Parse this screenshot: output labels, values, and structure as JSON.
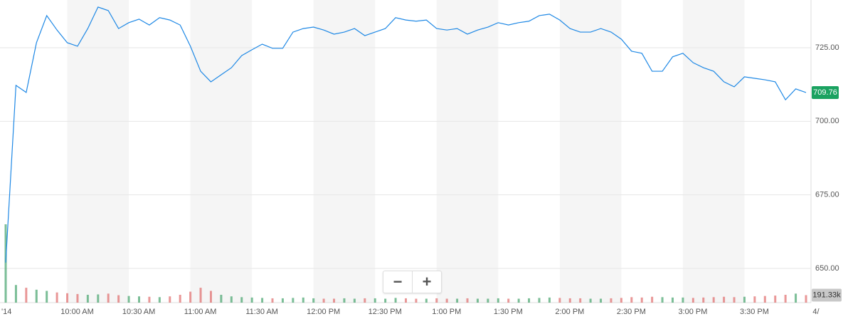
{
  "chart_data": {
    "type": "line",
    "x": [
      "9:30 AM",
      "9:35 AM",
      "9:40 AM",
      "9:45 AM",
      "9:50 AM",
      "9:55 AM",
      "10:00 AM",
      "10:05 AM",
      "10:10 AM",
      "10:15 AM",
      "10:20 AM",
      "10:25 AM",
      "10:30 AM",
      "10:35 AM",
      "10:40 AM",
      "10:45 AM",
      "10:50 AM",
      "10:55 AM",
      "11:00 AM",
      "11:05 AM",
      "11:10 AM",
      "11:15 AM",
      "11:20 AM",
      "11:25 AM",
      "11:30 AM",
      "11:35 AM",
      "11:40 AM",
      "11:45 AM",
      "11:50 AM",
      "11:55 AM",
      "12:00 PM",
      "12:05 PM",
      "12:10 PM",
      "12:15 PM",
      "12:20 PM",
      "12:25 PM",
      "12:30 PM",
      "12:35 PM",
      "12:40 PM",
      "12:45 PM",
      "12:50 PM",
      "12:55 PM",
      "1:00 PM",
      "1:05 PM",
      "1:10 PM",
      "1:15 PM",
      "1:20 PM",
      "1:25 PM",
      "1:30 PM",
      "1:35 PM",
      "1:40 PM",
      "1:45 PM",
      "1:50 PM",
      "1:55 PM",
      "2:00 PM",
      "2:05 PM",
      "2:10 PM",
      "2:15 PM",
      "2:20 PM",
      "2:25 PM",
      "2:30 PM",
      "2:35 PM",
      "2:40 PM",
      "2:45 PM",
      "2:50 PM",
      "2:55 PM",
      "3:00 PM",
      "3:05 PM",
      "3:10 PM",
      "3:15 PM",
      "3:20 PM",
      "3:25 PM",
      "3:30 PM",
      "3:35 PM",
      "3:40 PM",
      "3:45 PM",
      "3:50 PM",
      "3:55 PM",
      "4:00 PM"
    ],
    "series": [
      {
        "color": "#1e88e5",
        "values": [
          652,
          712.2,
          709.8,
          726.7,
          735.9,
          731,
          726.7,
          725.5,
          731.5,
          738.8,
          737.6,
          731.5,
          733.5,
          734.7,
          732.7,
          735.2,
          734.4,
          732.7,
          725.5,
          717,
          713.4,
          715.8,
          718.2,
          722.3,
          724.3,
          726.2,
          724.8,
          724.8,
          730.3,
          731.5,
          732,
          731,
          729.6,
          730.3,
          731.5,
          729.1,
          730.3,
          731.5,
          735.2,
          734.4,
          734,
          734.4,
          731.5,
          731,
          731.5,
          729.6,
          731,
          732,
          733.5,
          732.7,
          733.5,
          734,
          735.9,
          736.4,
          734.4,
          731.5,
          730.3,
          730.3,
          731.5,
          730.3,
          727.9,
          723.8,
          723.1,
          717,
          717,
          721.9,
          723.1,
          719.9,
          718.2,
          717,
          713.4,
          711.7,
          715.1,
          714.6,
          714.1,
          713.4,
          707.3,
          711,
          709.76
        ]
      }
    ],
    "volume": {
      "values": [
        2000000,
        450000,
        380000,
        330000,
        300000,
        260000,
        240000,
        220000,
        200000,
        210000,
        230000,
        190000,
        170000,
        160000,
        150000,
        140000,
        160000,
        200000,
        280000,
        380000,
        300000,
        200000,
        160000,
        140000,
        130000,
        120000,
        110000,
        110000,
        120000,
        130000,
        110000,
        100000,
        100000,
        110000,
        100000,
        110000,
        110000,
        100000,
        120000,
        110000,
        100000,
        100000,
        110000,
        100000,
        100000,
        110000,
        100000,
        100000,
        110000,
        100000,
        100000,
        110000,
        120000,
        130000,
        120000,
        110000,
        110000,
        100000,
        100000,
        110000,
        120000,
        140000,
        130000,
        150000,
        140000,
        130000,
        130000,
        120000,
        130000,
        140000,
        150000,
        140000,
        150000,
        160000,
        170000,
        180000,
        200000,
        230000,
        191330
      ],
      "ylim": [
        0,
        3000000
      ],
      "up_color": "#43a36b",
      "down_color": "#e06b6b",
      "last_label": {
        "value": 191330,
        "label": "191.33k"
      }
    },
    "last_price": 709.76,
    "last_price_color": "#1aa260",
    "ylim": [
      638.4,
      741.2
    ],
    "yticks": [
      {
        "value": 650,
        "label": "650.00"
      },
      {
        "value": 675,
        "label": "675.00"
      },
      {
        "value": 700,
        "label": "700.00"
      },
      {
        "value": 725,
        "label": "725.00"
      }
    ],
    "xticks": [
      "'14",
      "10:00 AM",
      "10:30 AM",
      "11:00 AM",
      "11:30 AM",
      "12:00 PM",
      "12:30 PM",
      "1:00 PM",
      "1:30 PM",
      "2:00 PM",
      "2:30 PM",
      "3:00 PM",
      "3:30 PM",
      "4/"
    ],
    "grid": true,
    "zoom_buttons": [
      "−",
      "+"
    ]
  }
}
